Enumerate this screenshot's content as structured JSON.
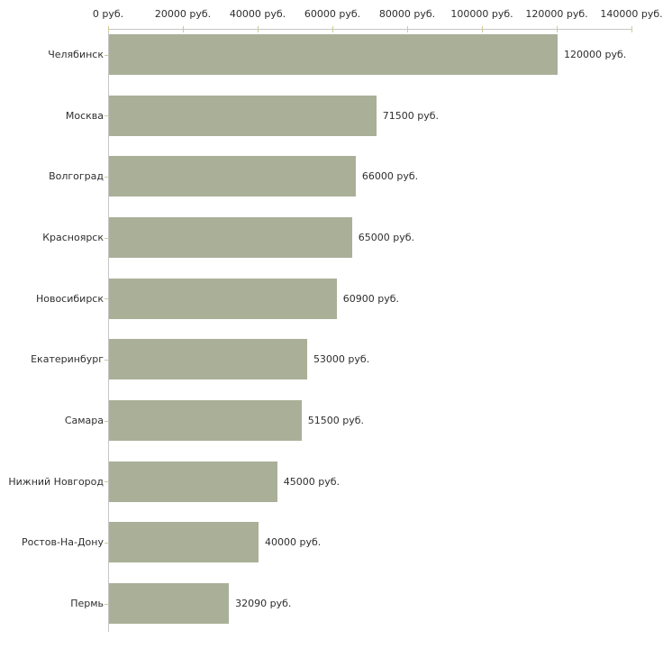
{
  "chart_data": {
    "type": "bar",
    "orientation": "horizontal",
    "title": "",
    "xlabel": "",
    "ylabel": "",
    "grid": false,
    "legend": null,
    "unit_suffix": " руб.",
    "categories": [
      "Челябинск",
      "Москва",
      "Волгоград",
      "Красноярск",
      "Новосибирск",
      "Екатеринбург",
      "Самара",
      "Нижний Новгород",
      "Ростов-На-Дону",
      "Пермь"
    ],
    "values": [
      120000,
      71500,
      66000,
      65000,
      60900,
      53000,
      51500,
      45000,
      40000,
      32090
    ],
    "value_labels": [
      "120000 руб.",
      "71500 руб.",
      "66000 руб.",
      "65000 руб.",
      "60900 руб.",
      "53000 руб.",
      "51500 руб.",
      "45000 руб.",
      "40000 руб.",
      "32090 руб."
    ],
    "xlim": [
      0,
      140000
    ],
    "x_ticks": [
      0,
      20000,
      40000,
      60000,
      80000,
      100000,
      120000,
      140000
    ],
    "x_tick_labels": [
      "0 руб.",
      "20000 руб.",
      "40000 руб.",
      "60000 руб.",
      "80000 руб.",
      "100000 руб.",
      "120000 руб.",
      "140000 руб."
    ],
    "colors": {
      "bar": "#aab098",
      "axis_line": "#c6c6c6",
      "tick_mark": "#cccc99",
      "text": "#2e2e2e",
      "background": "#ffffff"
    }
  }
}
